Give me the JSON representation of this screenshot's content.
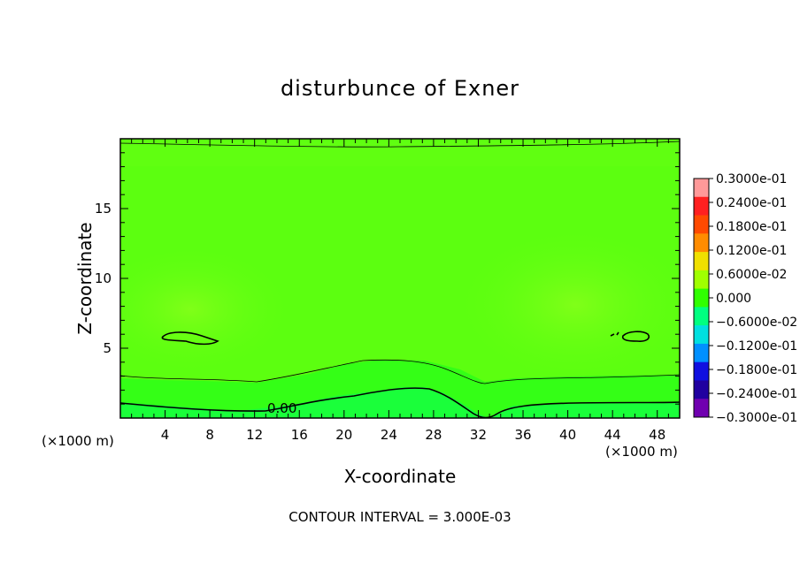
{
  "chart_data": {
    "type": "heatmap",
    "title": "disturbunce of Exner",
    "xlabel": "X-coordinate",
    "ylabel": "Z-coordinate",
    "x_units": "(×1000 m)",
    "z_units": "(×1000 m)",
    "xlim": [
      0,
      50
    ],
    "ylim": [
      0,
      20
    ],
    "x_ticks": [
      "4",
      "8",
      "12",
      "16",
      "20",
      "24",
      "28",
      "32",
      "36",
      "40",
      "44",
      "48"
    ],
    "y_ticks": [
      "5",
      "10",
      "15"
    ],
    "contour_interval": "CONTOUR INTERVAL = 3.000E-03",
    "contour_label": "0.00",
    "colorbar": {
      "labels": [
        "0.3000e-01",
        "0.2400e-01",
        "0.1800e-01",
        "0.1200e-01",
        "0.6000e-02",
        "0.000",
        "−0.6000e-02",
        "−0.1200e-01",
        "−0.1800e-01",
        "−0.2400e-01",
        "−0.3000e-01"
      ],
      "colors": [
        "#ff9999",
        "#ff2020",
        "#ff4a00",
        "#ff8c00",
        "#f0e000",
        "#a0ff00",
        "#30ff00",
        "#00ff80",
        "#00e0e0",
        "#0090ff",
        "#1010e0",
        "#2000a0",
        "#7000b0"
      ]
    },
    "field_colors": {
      "base": "#5cff10",
      "positive_lobes": "#78ff18",
      "surface_layer": "#2dff1e",
      "surface_bump": "#1aff3a"
    },
    "grid": false,
    "legend": "right"
  }
}
